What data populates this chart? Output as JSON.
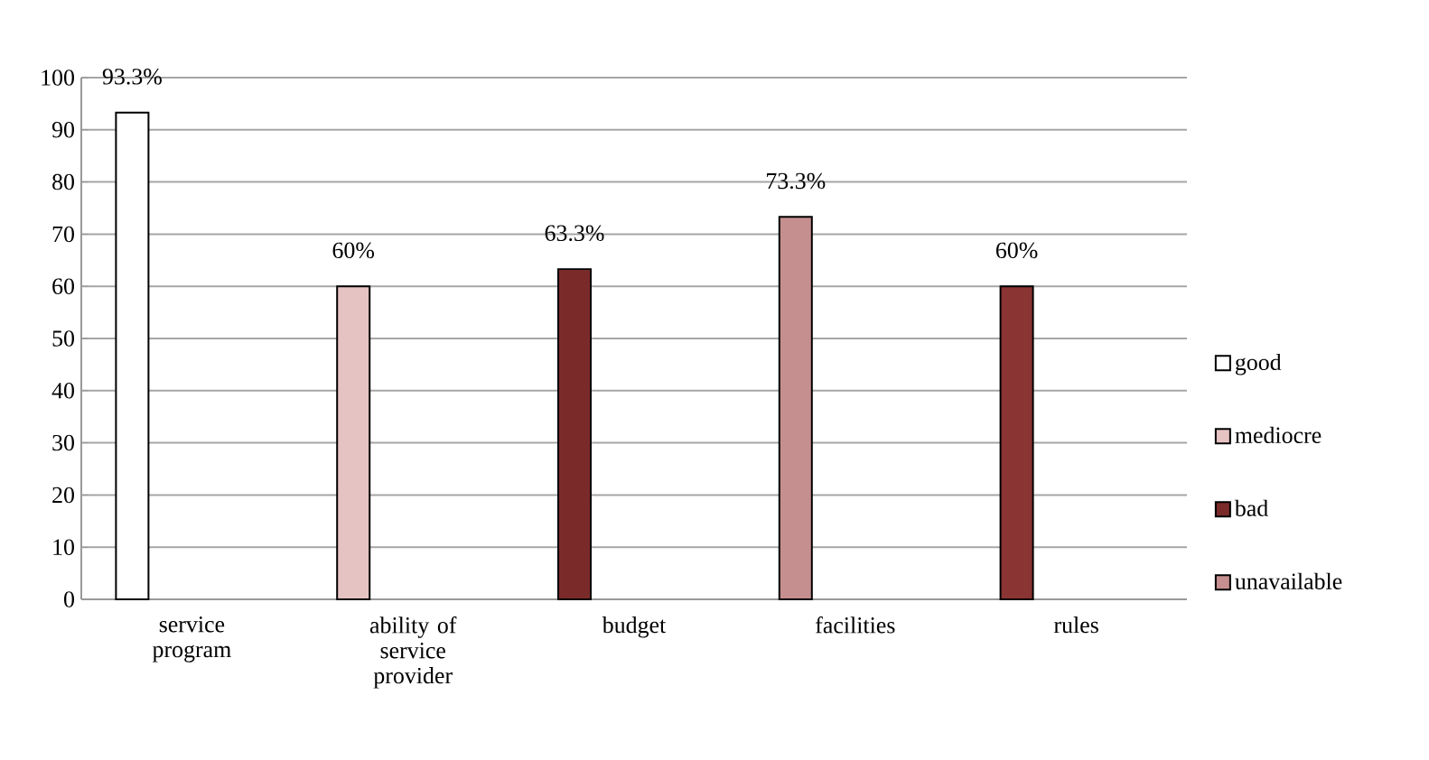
{
  "chart_data": {
    "type": "bar",
    "categories": [
      "service program",
      "ability of service provider",
      "budget",
      "facilities",
      "rules"
    ],
    "series": [
      {
        "name": "good",
        "color": "#ffffff",
        "values": [
          93.3,
          null,
          null,
          null,
          null
        ],
        "value_labels": [
          "93.3%",
          null,
          null,
          null,
          null
        ]
      },
      {
        "name": "mediocre",
        "color": "#e6c3c3",
        "values": [
          null,
          60,
          null,
          null,
          null
        ],
        "value_labels": [
          null,
          "60%",
          null,
          null,
          null
        ]
      },
      {
        "name": "bad",
        "color": "#7b2a2a",
        "values": [
          null,
          null,
          63.3,
          null,
          null
        ],
        "value_labels": [
          null,
          null,
          "63.3%",
          null,
          null
        ]
      },
      {
        "name": "unavailable",
        "color": "#c58f8f",
        "values": [
          null,
          null,
          null,
          73.3,
          null
        ],
        "value_labels": [
          null,
          null,
          null,
          "73.3%",
          null
        ]
      },
      {
        "color": "#8a3434",
        "values": [
          null,
          null,
          null,
          null,
          60
        ],
        "value_labels": [
          null,
          null,
          null,
          null,
          "60%"
        ]
      }
    ],
    "ylim": [
      0,
      100
    ],
    "yticks": [
      0,
      10,
      20,
      30,
      40,
      50,
      60,
      70,
      80,
      90,
      100
    ],
    "grid": "y",
    "legend": "right"
  }
}
